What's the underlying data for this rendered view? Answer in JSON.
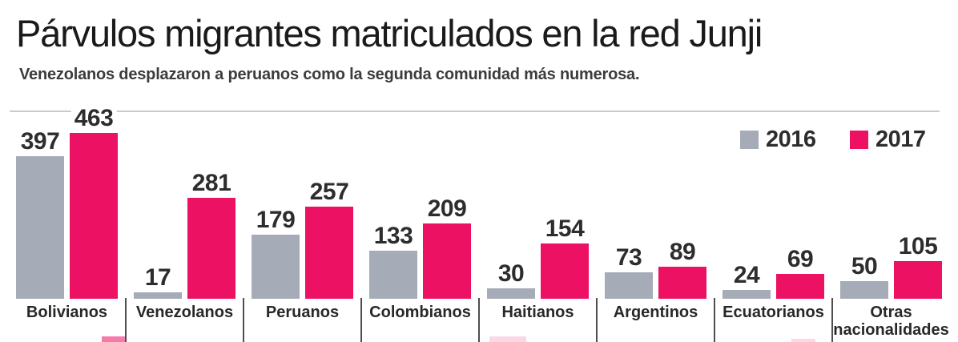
{
  "header": {
    "title": "Párvulos migrantes matriculados en la red Junji",
    "subtitle": "Venezolanos desplazaron a peruanos como la segunda comunidad más numerosa."
  },
  "legend": [
    {
      "label": "2016",
      "color": "#a5abb7"
    },
    {
      "label": "2017",
      "color": "#ed1164"
    }
  ],
  "colors": {
    "bar_2016": "#a5abb7",
    "bar_2017": "#ed1164",
    "value_text": "#2d2d2d",
    "category_text": "#282828",
    "top_rule": "#c8cacc",
    "divider": "#4e4e4e",
    "background": "#ffffff"
  },
  "chart_data": {
    "type": "bar",
    "title": "Párvulos migrantes matriculados en la red Junji",
    "subtitle": "Venezolanos desplazaron a peruanos como la segunda comunidad más numerosa.",
    "categories": [
      "Bolivianos",
      "Venezolanos",
      "Peruanos",
      "Colombianos",
      "Haitianos",
      "Argentinos",
      "Ecuatorianos",
      "Otras nacionalidades"
    ],
    "series": [
      {
        "name": "2016",
        "color": "#a5abb7",
        "values": [
          397,
          17,
          179,
          133,
          30,
          73,
          24,
          50
        ]
      },
      {
        "name": "2017",
        "color": "#ed1164",
        "values": [
          463,
          281,
          257,
          209,
          154,
          89,
          69,
          105
        ]
      }
    ],
    "value_labels_shown": true,
    "xlabel": "",
    "ylabel": "",
    "ylim": [
      0,
      463
    ],
    "grid": false,
    "legend_position": "top-right"
  }
}
